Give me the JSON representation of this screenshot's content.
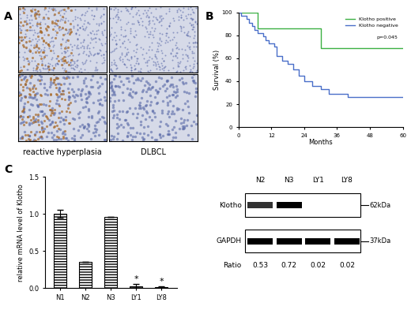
{
  "panel_labels": [
    "A",
    "B",
    "C"
  ],
  "images": {
    "captions": [
      "reactive hyperplasia",
      "DLBCL"
    ]
  },
  "chart_data": [
    {
      "type": "line",
      "x_label": "Months",
      "y_label": "Survival (%)",
      "xlim": [
        0,
        60
      ],
      "xticks": [
        0,
        12,
        24,
        36,
        48,
        60
      ],
      "ylim": [
        0,
        100
      ],
      "yticks": [
        0,
        20,
        40,
        60,
        80,
        100
      ],
      "legend": "upper right",
      "line_style": "steps",
      "annotations": [
        "p=0.045"
      ],
      "series": [
        {
          "name": "Klotho positive",
          "color": "#3cb043",
          "x": [
            0,
            7,
            30,
            60
          ],
          "values": [
            100,
            86,
            69,
            69
          ]
        },
        {
          "name": "Klotho negative",
          "color": "#4a6fc9",
          "x": [
            0,
            1,
            3,
            4,
            5,
            6,
            7,
            9,
            10,
            11,
            13,
            14,
            16,
            18,
            20,
            22,
            24,
            27,
            30,
            33,
            40,
            60
          ],
          "values": [
            100,
            97,
            94,
            91,
            88,
            85,
            82,
            79,
            76,
            73,
            70,
            62,
            58,
            55,
            50,
            45,
            40,
            36,
            33,
            29,
            26,
            26
          ]
        }
      ]
    },
    {
      "type": "bar",
      "y_label": "relative mRNA level of Klotho",
      "categories": [
        "N1",
        "N2",
        "N3",
        "LY1",
        "LY8"
      ],
      "values": [
        1.0,
        0.36,
        0.96,
        0.03,
        0.02
      ],
      "errors": [
        0.05,
        0.0,
        0.0,
        0.03,
        0.01
      ],
      "color": "#ffffff",
      "ylim": [
        0,
        1.5
      ],
      "yticks": [
        {
          "value": 0,
          "label": "0.0"
        },
        {
          "value": 0.5,
          "label": "0.5"
        },
        {
          "value": 1.0,
          "label": "1.0"
        },
        {
          "value": 1.5,
          "label": "1.5"
        }
      ],
      "significance": {
        "label": "*",
        "categories": [
          "LY1",
          "LY8"
        ]
      }
    }
  ],
  "western_blot": {
    "lanes": [
      "N2",
      "N3",
      "LY1",
      "LY8"
    ],
    "rows": [
      {
        "name": "Klotho",
        "size": "62kDa"
      },
      {
        "name": "GAPDH",
        "size": "37kDa"
      }
    ],
    "ratio_label": "Ratio",
    "ratios": [
      0.53,
      0.72,
      0.02,
      0.02
    ]
  }
}
